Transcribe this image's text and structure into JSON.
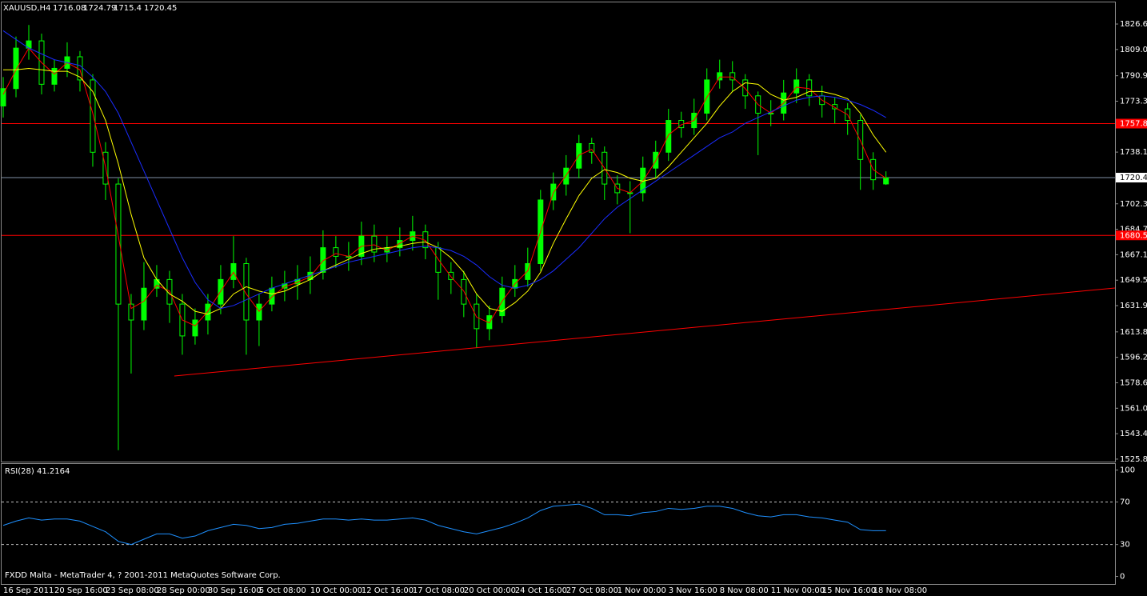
{
  "chart_data": [
    {
      "type": "candlestick",
      "symbol": "XAUUSD,H4",
      "categories": [
        "16 Sep 2011",
        null,
        null,
        null,
        "20 Sep 16:00",
        null,
        null,
        null,
        "23 Sep 08:00",
        null,
        null,
        null,
        "28 Sep 00:00",
        null,
        null,
        null,
        "30 Sep 16:00",
        null,
        null,
        null,
        "5 Oct 08:00",
        null,
        null,
        null,
        "10 Oct 00:00",
        null,
        null,
        null,
        "12 Oct 16:00",
        null,
        null,
        null,
        "17 Oct 08:00",
        null,
        null,
        null,
        "20 Oct 00:00",
        null,
        null,
        null,
        "24 Oct 16:00",
        null,
        null,
        null,
        "27 Oct 08:00",
        null,
        null,
        null,
        "1 Nov 00:00",
        null,
        null,
        null,
        "3 Nov 16:00",
        null,
        null,
        null,
        "8 Nov 08:00",
        null,
        null,
        null,
        "11 Nov 00:00",
        null,
        null,
        null,
        "15 Nov 16:00",
        null,
        null,
        null,
        "18 Nov 08:00",
        null
      ],
      "open": [
        1770,
        1782,
        1810,
        1815,
        1785,
        1796,
        1804,
        1788,
        1738,
        1716,
        1633,
        1622,
        1644,
        1650,
        1633,
        1611,
        1622,
        1633,
        1650,
        1661,
        1622,
        1633,
        1644,
        1647,
        1650,
        1655,
        1672,
        1666,
        1666,
        1680,
        1669,
        1672,
        1677,
        1683,
        1672,
        1655,
        1650,
        1633,
        1616,
        1625,
        1644,
        1650,
        1661,
        1705,
        1716,
        1727,
        1744,
        1738,
        1716,
        1710,
        1710,
        1727,
        1738,
        1760,
        1755,
        1765,
        1788,
        1793,
        1788,
        1777,
        1765,
        1765,
        1779,
        1788,
        1777,
        1771,
        1768,
        1760,
        1733,
        1716.08
      ],
      "high": [
        1790,
        1818,
        1826,
        1820,
        1802,
        1814,
        1808,
        1792,
        1745,
        1720,
        1640,
        1662,
        1660,
        1656,
        1640,
        1630,
        1640,
        1660,
        1680,
        1665,
        1640,
        1652,
        1656,
        1660,
        1666,
        1684,
        1680,
        1676,
        1690,
        1688,
        1680,
        1686,
        1694,
        1688,
        1676,
        1662,
        1656,
        1640,
        1632,
        1652,
        1660,
        1672,
        1712,
        1724,
        1736,
        1750,
        1748,
        1742,
        1722,
        1718,
        1735,
        1746,
        1768,
        1766,
        1775,
        1796,
        1802,
        1801,
        1792,
        1780,
        1774,
        1788,
        1796,
        1792,
        1784,
        1776,
        1772,
        1764,
        1738,
        1724.79
      ],
      "low": [
        1762,
        1776,
        1802,
        1778,
        1780,
        1790,
        1780,
        1728,
        1705,
        1532,
        1585,
        1615,
        1638,
        1620,
        1598,
        1605,
        1612,
        1626,
        1644,
        1598,
        1604,
        1628,
        1635,
        1636,
        1640,
        1650,
        1658,
        1656,
        1660,
        1662,
        1662,
        1666,
        1670,
        1664,
        1636,
        1640,
        1624,
        1603,
        1608,
        1620,
        1638,
        1645,
        1656,
        1698,
        1708,
        1720,
        1730,
        1705,
        1702,
        1682,
        1704,
        1720,
        1732,
        1748,
        1750,
        1760,
        1782,
        1780,
        1768,
        1736,
        1756,
        1760,
        1772,
        1770,
        1762,
        1758,
        1750,
        1712,
        1712,
        1715.4
      ],
      "close": [
        1782,
        1810,
        1815,
        1785,
        1796,
        1804,
        1788,
        1738,
        1716,
        1633,
        1622,
        1644,
        1650,
        1633,
        1611,
        1622,
        1633,
        1650,
        1661,
        1622,
        1633,
        1644,
        1647,
        1650,
        1655,
        1672,
        1666,
        1666,
        1680,
        1669,
        1672,
        1677,
        1683,
        1672,
        1655,
        1650,
        1633,
        1616,
        1625,
        1644,
        1650,
        1661,
        1705,
        1716,
        1727,
        1744,
        1738,
        1716,
        1710,
        1710,
        1727,
        1738,
        1760,
        1755,
        1765,
        1788,
        1793,
        1788,
        1777,
        1765,
        1765,
        1779,
        1788,
        1777,
        1771,
        1768,
        1760,
        1733,
        1719,
        1720.45
      ],
      "color": "#00ff00",
      "lines": [
        {
          "color": "#ff0000",
          "values": [
            1778,
            1795,
            1810,
            1800,
            1792,
            1800,
            1795,
            1765,
            1728,
            1680,
            1630,
            1635,
            1646,
            1642,
            1622,
            1618,
            1628,
            1642,
            1655,
            1640,
            1628,
            1638,
            1645,
            1648,
            1652,
            1663,
            1668,
            1666,
            1673,
            1674,
            1670,
            1675,
            1680,
            1677,
            1664,
            1652,
            1642,
            1624,
            1620,
            1635,
            1647,
            1656,
            1683,
            1710,
            1722,
            1736,
            1740,
            1727,
            1713,
            1710,
            1718,
            1732,
            1750,
            1757,
            1760,
            1776,
            1790,
            1790,
            1782,
            1771,
            1765,
            1772,
            1783,
            1782,
            1774,
            1769,
            1764,
            1746,
            1726,
            1720
          ]
        },
        {
          "color": "#ffff00",
          "values": [
            1795,
            1795,
            1796,
            1795,
            1794,
            1794,
            1790,
            1780,
            1760,
            1730,
            1695,
            1665,
            1650,
            1640,
            1635,
            1628,
            1626,
            1630,
            1640,
            1645,
            1642,
            1640,
            1642,
            1646,
            1650,
            1656,
            1660,
            1664,
            1668,
            1671,
            1672,
            1673,
            1675,
            1676,
            1672,
            1665,
            1655,
            1640,
            1630,
            1628,
            1634,
            1642,
            1655,
            1675,
            1692,
            1708,
            1720,
            1726,
            1724,
            1720,
            1718,
            1720,
            1728,
            1738,
            1748,
            1758,
            1770,
            1780,
            1786,
            1785,
            1778,
            1774,
            1776,
            1780,
            1780,
            1778,
            1775,
            1765,
            1750,
            1738
          ]
        },
        {
          "color": "#1a2cff",
          "values": [
            1822,
            1816,
            1810,
            1806,
            1802,
            1800,
            1798,
            1790,
            1780,
            1765,
            1745,
            1725,
            1705,
            1685,
            1665,
            1648,
            1636,
            1630,
            1632,
            1636,
            1640,
            1644,
            1647,
            1650,
            1653,
            1656,
            1659,
            1662,
            1664,
            1666,
            1668,
            1670,
            1672,
            1673,
            1672,
            1670,
            1666,
            1660,
            1652,
            1646,
            1644,
            1646,
            1650,
            1656,
            1664,
            1672,
            1682,
            1692,
            1700,
            1706,
            1712,
            1718,
            1724,
            1730,
            1736,
            1742,
            1748,
            1752,
            1758,
            1762,
            1766,
            1770,
            1774,
            1776,
            1777,
            1776,
            1774,
            1771,
            1767,
            1762
          ]
        }
      ],
      "levels": [
        {
          "value": 1757.8,
          "label": "1757.80",
          "color": "#ff0000"
        },
        {
          "value": 1680.5,
          "label": "1680.50",
          "color": "#ff0000"
        }
      ],
      "trendline": {
        "x": [
          13.375,
          86.9
        ],
        "values": [
          1583.3,
          1644.1
        ],
        "color": "#ff0000"
      },
      "xlim": [
        -0.25,
        86.9
      ],
      "ylim": [
        1524.1,
        1840.5
      ],
      "yticks": [
        1826.65,
        1809.05,
        {
          "value": 1790.9,
          "label": "1790.90"
        },
        {
          "value": 1773.3,
          "label": "1773.30"
        },
        {
          "value": 1738.1,
          "label": "1738.10"
        },
        1702.35,
        1684.75,
        1667.15,
        1649.55,
        1631.95,
        {
          "value": 1613.8,
          "label": "1613.80"
        },
        {
          "value": 1596.2,
          "label": "1596.20"
        },
        {
          "value": 1578.6,
          "label": "1578.60"
        },
        {
          "value": 1561,
          "label": "1561.00"
        },
        {
          "value": 1543.4,
          "label": "1543.40"
        },
        {
          "value": 1525.8,
          "label": "1525.80"
        }
      ]
    },
    {
      "type": "line",
      "title": "RSI(28) 41.2164",
      "annotation": "FXDD Malta - MetaTrader 4, ? 2001-2011 MetaQuotes Software Corp.",
      "color": "#1e90ff",
      "values": [
        48,
        52,
        55,
        53,
        54,
        54,
        52,
        47,
        42,
        33,
        30,
        35,
        40,
        40,
        36,
        38,
        43,
        46,
        49,
        48,
        45,
        46,
        49,
        50,
        52,
        54,
        54,
        53,
        54,
        53,
        53,
        54,
        55,
        53,
        48,
        45,
        42,
        40,
        43,
        46,
        50,
        55,
        62,
        66,
        67,
        68,
        64,
        58,
        58,
        57,
        60,
        61,
        64,
        63,
        64,
        66,
        66,
        64,
        60,
        57,
        56,
        58,
        58,
        56,
        55,
        53,
        51,
        44,
        43,
        43
      ],
      "levels": [
        30,
        70
      ],
      "ylim": [
        -7.1,
        105.7
      ],
      "yticks": [
        0,
        30,
        70,
        100
      ]
    }
  ]
}
